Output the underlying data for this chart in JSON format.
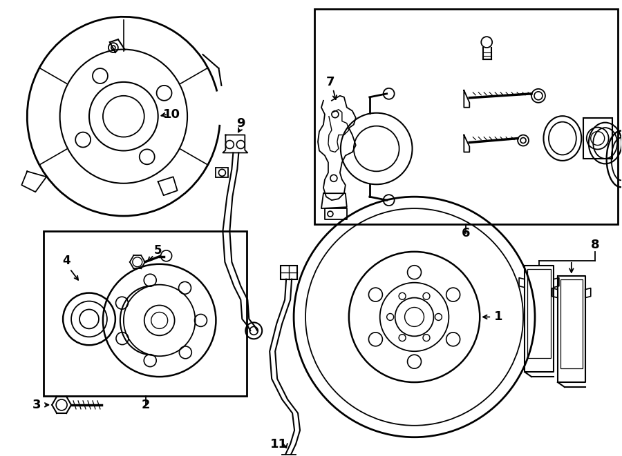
{
  "bg_color": "#ffffff",
  "line_color": "#000000",
  "lw": 1.3,
  "fig_width": 9.0,
  "fig_height": 6.61,
  "dpi": 100,
  "xlim": [
    0,
    900
  ],
  "ylim": [
    0,
    661
  ]
}
